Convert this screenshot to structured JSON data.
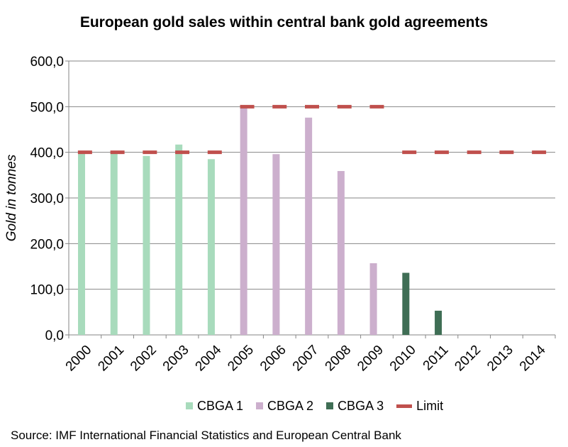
{
  "chart_data": {
    "type": "bar",
    "title": "European gold sales within central bank gold agreements",
    "ylabel": "Gold in tonnes",
    "xlabel": "",
    "ylim": [
      0,
      600
    ],
    "yticks": [
      "0,0",
      "100,0",
      "200,0",
      "300,0",
      "400,0",
      "500,0",
      "600,0"
    ],
    "categories": [
      "2000",
      "2001",
      "2002",
      "2003",
      "2004",
      "2005",
      "2006",
      "2007",
      "2008",
      "2009",
      "2010",
      "2011",
      "2012",
      "2013",
      "2014"
    ],
    "series": [
      {
        "name": "CBGA 1",
        "kind": "bar",
        "color": "#a8dbbc",
        "values": [
          400,
          402,
          392,
          417,
          385,
          null,
          null,
          null,
          null,
          null,
          null,
          null,
          null,
          null,
          null
        ]
      },
      {
        "name": "CBGA 2",
        "kind": "bar",
        "color": "#ccafcd",
        "values": [
          null,
          null,
          null,
          null,
          null,
          497,
          396,
          476,
          359,
          157,
          null,
          null,
          null,
          null,
          null
        ]
      },
      {
        "name": "CBGA 3",
        "kind": "bar",
        "color": "#3f6e55",
        "values": [
          null,
          null,
          null,
          null,
          null,
          null,
          null,
          null,
          null,
          null,
          136,
          53,
          0,
          0,
          0
        ]
      },
      {
        "name": "Limit",
        "kind": "dash",
        "color": "#c0504d",
        "values": [
          400,
          400,
          400,
          400,
          400,
          500,
          500,
          500,
          500,
          500,
          400,
          400,
          400,
          400,
          400
        ]
      }
    ],
    "grid": "horizontal",
    "legend_position": "bottom"
  },
  "source": "Source: IMF International Financial Statistics and European Central Bank"
}
